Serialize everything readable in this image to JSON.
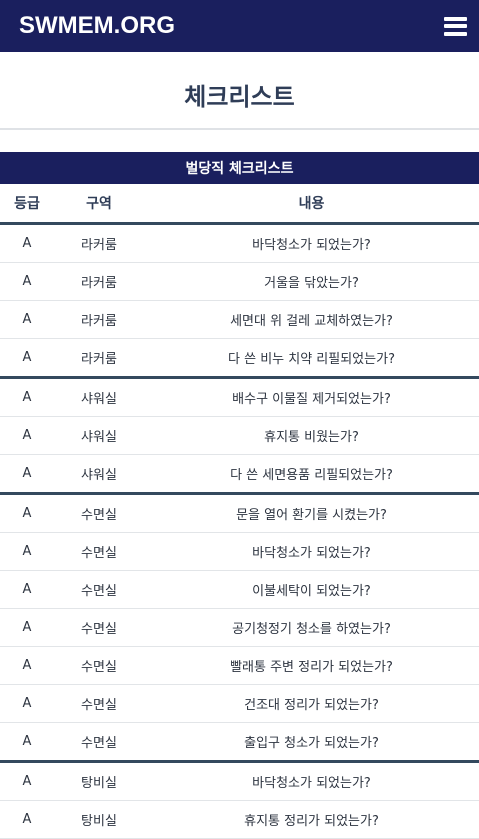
{
  "navbar": {
    "brand": "SWMEM.ORG",
    "menu_icon": "hamburger-menu-icon"
  },
  "page": {
    "title": "체크리스트"
  },
  "checklist": {
    "title": "벌당직 체크리스트",
    "columns": {
      "grade": "등급",
      "area": "구역",
      "content": "내용"
    },
    "rows": [
      {
        "grade": "A",
        "area": "라커룸",
        "content": "바닥청소가 되었는가?"
      },
      {
        "grade": "A",
        "area": "라커룸",
        "content": "거울을 닦았는가?"
      },
      {
        "grade": "A",
        "area": "라커룸",
        "content": "세면대 위 걸레 교체하였는가?"
      },
      {
        "grade": "A",
        "area": "라커룸",
        "content": "다 쓴 비누 치약 리필되었는가?"
      },
      {
        "grade": "A",
        "area": "샤워실",
        "content": "배수구 이물질 제거되었는가?"
      },
      {
        "grade": "A",
        "area": "샤워실",
        "content": "휴지통 비웠는가?"
      },
      {
        "grade": "A",
        "area": "샤워실",
        "content": "다 쓴 세면용품 리필되었는가?"
      },
      {
        "grade": "A",
        "area": "수면실",
        "content": "문을 열어 환기를 시켰는가?"
      },
      {
        "grade": "A",
        "area": "수면실",
        "content": "바닥청소가 되었는가?"
      },
      {
        "grade": "A",
        "area": "수면실",
        "content": "이불세탁이 되었는가?"
      },
      {
        "grade": "A",
        "area": "수면실",
        "content": "공기청정기 청소를 하였는가?"
      },
      {
        "grade": "A",
        "area": "수면실",
        "content": "빨래통 주변 정리가 되었는가?"
      },
      {
        "grade": "A",
        "area": "수면실",
        "content": "건조대 정리가 되었는가?"
      },
      {
        "grade": "A",
        "area": "수면실",
        "content": "출입구 청소가 되었는가?"
      },
      {
        "grade": "A",
        "area": "탕비실",
        "content": "바닥청소가 되었는가?"
      },
      {
        "grade": "A",
        "area": "탕비실",
        "content": "휴지통 정리가 되었는가?"
      }
    ]
  }
}
